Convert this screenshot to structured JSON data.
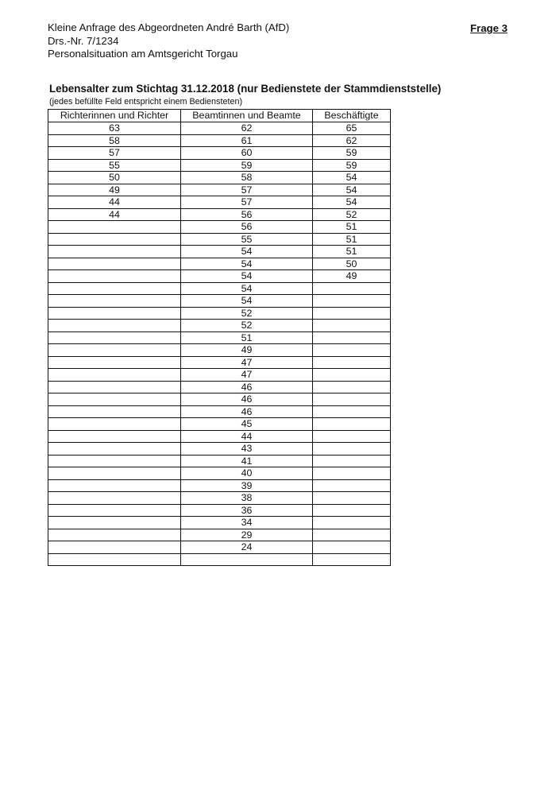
{
  "header": {
    "line1": "Kleine Anfrage des Abgeordneten André Barth (AfD)",
    "line2": "Drs.-Nr. 7/1234",
    "line3": "Personalsituation am Amtsgericht Torgau",
    "question": "Frage 3"
  },
  "title": "Lebensalter zum Stichtag 31.12.2018 (nur Bedienstete der Stammdienststelle)",
  "note": "(jedes befüllte Feld entspricht einem Bediensteten)",
  "table": {
    "columns": [
      "Richterinnen und Richter",
      "Beamtinnen und Beamte",
      "Beschäftigte"
    ],
    "richter": [
      63,
      58,
      57,
      55,
      50,
      49,
      44,
      44
    ],
    "beamte": [
      62,
      61,
      60,
      59,
      58,
      57,
      57,
      56,
      56,
      55,
      54,
      54,
      54,
      54,
      54,
      52,
      52,
      51,
      49,
      47,
      47,
      46,
      46,
      46,
      45,
      44,
      43,
      41,
      40,
      39,
      38,
      36,
      34,
      29,
      24
    ],
    "beschaeftigte": [
      65,
      62,
      59,
      59,
      54,
      54,
      54,
      52,
      51,
      51,
      51,
      50,
      49
    ]
  }
}
